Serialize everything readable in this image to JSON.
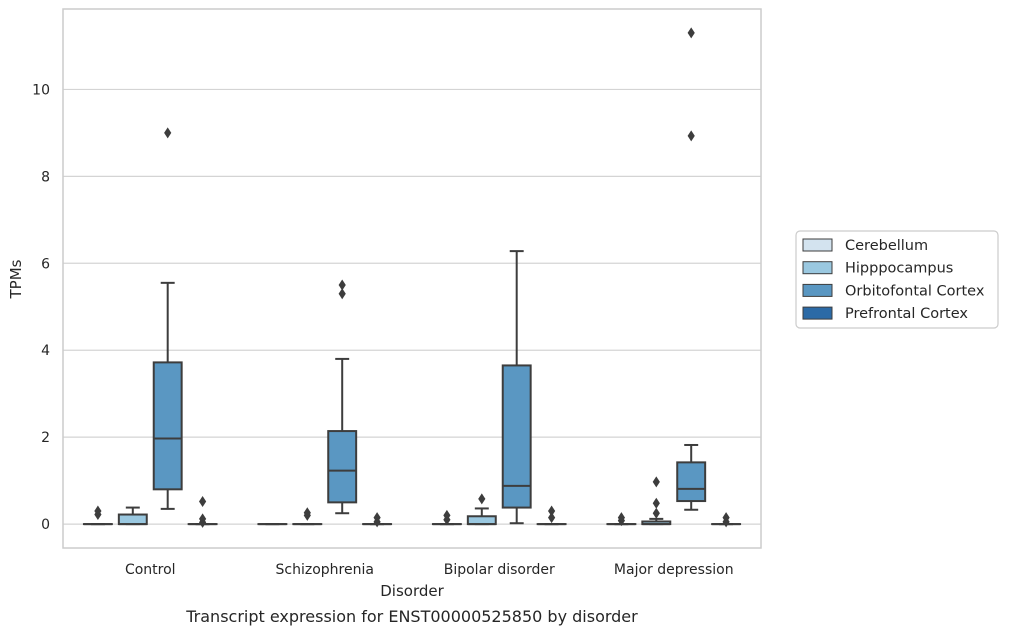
{
  "caption": "Transcript expression for ENST00000525850 by disorder",
  "chart_data": {
    "type": "box",
    "xlabel": "Disorder",
    "ylabel": "TPMs",
    "ylim": [
      -0.55,
      11.85
    ],
    "yticks": [
      0,
      2,
      4,
      6,
      8,
      10
    ],
    "grid": "horizontal",
    "legend_position": "right",
    "categories": [
      "Control",
      "Schizophrenia",
      "Bipolar disorder",
      "Major depression"
    ],
    "series": [
      {
        "name": "Cerebellum",
        "color": "#d3e3ef",
        "boxes": [
          {
            "whislo": 0,
            "q1": 0,
            "med": 0,
            "q3": 0,
            "whishi": 0,
            "fliers": [
              0.22,
              0.3
            ]
          },
          {
            "whislo": 0,
            "q1": 0,
            "med": 0,
            "q3": 0,
            "whishi": 0,
            "fliers": []
          },
          {
            "whislo": 0,
            "q1": 0,
            "med": 0,
            "q3": 0,
            "whishi": 0,
            "fliers": [
              0.1,
              0.2
            ]
          },
          {
            "whislo": 0,
            "q1": 0,
            "med": 0,
            "q3": 0,
            "whishi": 0,
            "fliers": [
              0.08,
              0.15
            ]
          }
        ]
      },
      {
        "name": "Hipppocampus",
        "color": "#9ac8e0",
        "boxes": [
          {
            "whislo": 0,
            "q1": 0,
            "med": 0,
            "q3": 0.22,
            "whishi": 0.38,
            "fliers": []
          },
          {
            "whislo": 0,
            "q1": 0,
            "med": 0,
            "q3": 0,
            "whishi": 0,
            "fliers": [
              0.2,
              0.26
            ]
          },
          {
            "whislo": 0,
            "q1": 0,
            "med": 0,
            "q3": 0.18,
            "whishi": 0.36,
            "fliers": [
              0.58
            ]
          },
          {
            "whislo": 0,
            "q1": 0,
            "med": 0,
            "q3": 0.06,
            "whishi": 0.12,
            "fliers": [
              0.25,
              0.48,
              0.97
            ]
          }
        ]
      },
      {
        "name": "Orbitofontal Cortex",
        "color": "#5a97c2",
        "boxes": [
          {
            "whislo": 0.35,
            "q1": 0.8,
            "med": 1.97,
            "q3": 3.72,
            "whishi": 5.55,
            "fliers": [
              9.0
            ]
          },
          {
            "whislo": 0.25,
            "q1": 0.5,
            "med": 1.23,
            "q3": 2.14,
            "whishi": 3.8,
            "fliers": [
              5.3,
              5.5
            ]
          },
          {
            "whislo": 0.02,
            "q1": 0.38,
            "med": 0.88,
            "q3": 3.65,
            "whishi": 6.28,
            "fliers": []
          },
          {
            "whislo": 0.33,
            "q1": 0.53,
            "med": 0.81,
            "q3": 1.42,
            "whishi": 1.82,
            "fliers": [
              8.93,
              11.3
            ]
          }
        ]
      },
      {
        "name": "Prefrontal Cortex",
        "color": "#2b6aa6",
        "boxes": [
          {
            "whislo": 0,
            "q1": 0,
            "med": 0,
            "q3": 0,
            "whishi": 0,
            "fliers": [
              0.04,
              0.12,
              0.52
            ]
          },
          {
            "whislo": 0,
            "q1": 0,
            "med": 0,
            "q3": 0,
            "whishi": 0,
            "fliers": [
              0.05,
              0.15
            ]
          },
          {
            "whislo": 0,
            "q1": 0,
            "med": 0,
            "q3": 0,
            "whishi": 0,
            "fliers": [
              0.15,
              0.3
            ]
          },
          {
            "whislo": 0,
            "q1": 0,
            "med": 0,
            "q3": 0,
            "whishi": 0,
            "fliers": [
              0.05,
              0.15
            ]
          }
        ]
      }
    ]
  }
}
